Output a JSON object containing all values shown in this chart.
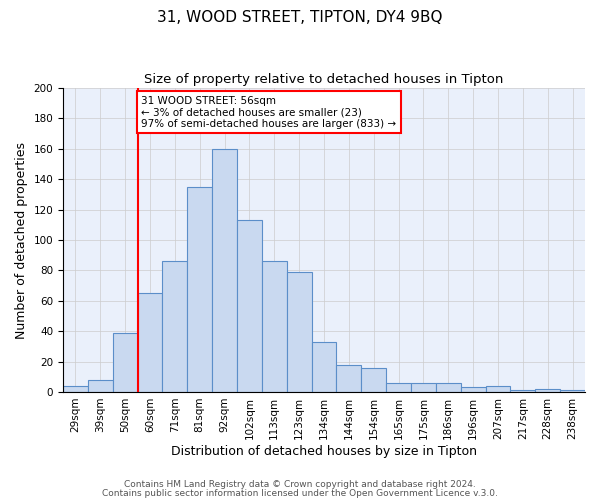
{
  "title": "31, WOOD STREET, TIPTON, DY4 9BQ",
  "subtitle": "Size of property relative to detached houses in Tipton",
  "xlabel": "Distribution of detached houses by size in Tipton",
  "ylabel": "Number of detached properties",
  "bar_labels": [
    "29sqm",
    "39sqm",
    "50sqm",
    "60sqm",
    "71sqm",
    "81sqm",
    "92sqm",
    "102sqm",
    "113sqm",
    "123sqm",
    "134sqm",
    "144sqm",
    "154sqm",
    "165sqm",
    "175sqm",
    "186sqm",
    "196sqm",
    "207sqm",
    "217sqm",
    "228sqm",
    "238sqm"
  ],
  "bar_values": [
    4,
    8,
    39,
    65,
    86,
    135,
    160,
    113,
    86,
    79,
    33,
    18,
    16,
    6,
    6,
    6,
    3,
    4,
    1,
    2,
    1
  ],
  "bar_color": "#c9d9f0",
  "bar_edge_color": "#5b8ec9",
  "annotation_box_text": "31 WOOD STREET: 56sqm\n← 3% of detached houses are smaller (23)\n97% of semi-detached houses are larger (833) →",
  "annotation_box_facecolor": "white",
  "annotation_box_edgecolor": "red",
  "vline_color": "red",
  "vline_x": 2.5,
  "ylim": [
    0,
    200
  ],
  "yticks": [
    0,
    20,
    40,
    60,
    80,
    100,
    120,
    140,
    160,
    180,
    200
  ],
  "grid_color": "#cccccc",
  "background_color": "#eaf0fb",
  "footer_line1": "Contains HM Land Registry data © Crown copyright and database right 2024.",
  "footer_line2": "Contains public sector information licensed under the Open Government Licence v.3.0.",
  "title_fontsize": 11,
  "subtitle_fontsize": 9.5,
  "xlabel_fontsize": 9,
  "ylabel_fontsize": 9,
  "tick_fontsize": 7.5,
  "footer_fontsize": 6.5
}
